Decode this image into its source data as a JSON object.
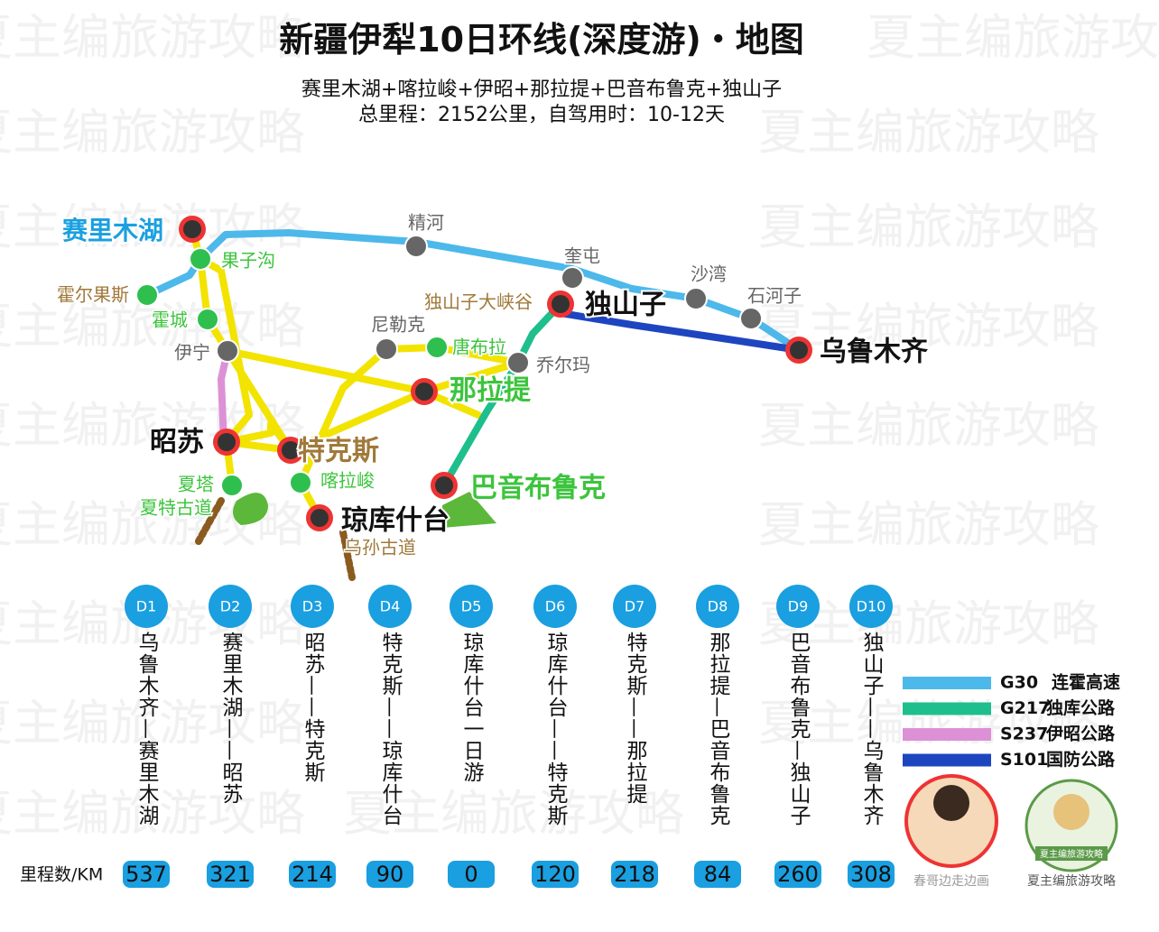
{
  "header": {
    "title": "新疆伊犁10日环线(深度游)・地图",
    "subtitle": "赛里木湖+喀拉峻+伊昭+那拉提+巴音布鲁克+独山子",
    "summary": "总里程：2152公里，自驾用时：10-12天"
  },
  "watermark": "夏主编旅游攻略",
  "places": [
    "赛里木湖",
    "果子沟",
    "霍尔果斯",
    "霍城",
    "伊宁",
    "精河",
    "奎屯",
    "独山子大峡谷",
    "独山子",
    "沙湾",
    "石河子",
    "乌鲁木齐",
    "尼勒克",
    "唐布拉",
    "乔尔玛",
    "那拉提",
    "昭苏",
    "特克斯",
    "喀拉峻",
    "夏塔",
    "夏特古道",
    "巴音布鲁克",
    "琼库什台",
    "乌孙古道"
  ],
  "legend": [
    {
      "code": "G30",
      "name": "连霍高速"
    },
    {
      "code": "G217",
      "name": "独库公路"
    },
    {
      "code": "S237",
      "name": "伊昭公路"
    },
    {
      "code": "S101",
      "name": "国防公路"
    }
  ],
  "itinerary": {
    "distance_label": "里程数/KM",
    "days": [
      {
        "day": "D1",
        "route": "乌鲁木齐—赛里木湖",
        "km": 537
      },
      {
        "day": "D2",
        "route": "赛里木湖——昭苏",
        "km": 321
      },
      {
        "day": "D3",
        "route": "昭苏——特克斯",
        "km": 214
      },
      {
        "day": "D4",
        "route": "特克斯——琼库什台",
        "km": 90
      },
      {
        "day": "D5",
        "route": "琼库什台一日游",
        "km": 0
      },
      {
        "day": "D6",
        "route": "琼库什台——特克斯",
        "km": 120
      },
      {
        "day": "D7",
        "route": "特克斯——那拉提",
        "km": 218
      },
      {
        "day": "D8",
        "route": "那拉提—巴音布鲁克",
        "km": 84
      },
      {
        "day": "D9",
        "route": "巴音布鲁克—独山子",
        "km": 260
      },
      {
        "day": "D10",
        "route": "独山子——乌鲁木齐",
        "km": 308
      }
    ]
  },
  "credits": [
    {
      "caption": "春哥边走边画"
    },
    {
      "badge": "夏主编旅游攻略",
      "caption": "夏主编旅游攻略"
    }
  ]
}
